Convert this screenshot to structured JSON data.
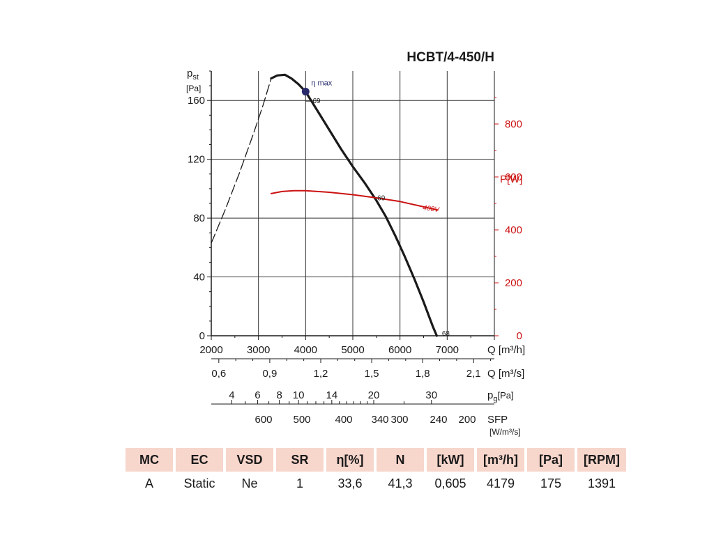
{
  "chart_data": {
    "type": "line",
    "title": "HCBT/4-450/H",
    "ylabel_main": "p",
    "ylabel_sub": "st",
    "ylabel_unit": "[Pa]",
    "xlabel": "Q [m³/h]",
    "xlim": [
      2000,
      8000
    ],
    "ylim": [
      0,
      180
    ],
    "xticks": [
      2000,
      3000,
      4000,
      5000,
      6000,
      7000
    ],
    "xtick_labels": [
      "2000",
      "3000",
      "4000",
      "5000",
      "6000",
      "7000"
    ],
    "yticks": [
      0,
      40,
      80,
      120,
      160
    ],
    "ytick_labels": [
      "0",
      "40",
      "80",
      "120",
      "160"
    ],
    "y2label": "P[W]",
    "y2lim": [
      0,
      1000
    ],
    "y2ticks": [
      0,
      200,
      400,
      600,
      800
    ],
    "y2tick_labels": [
      "0",
      "200",
      "400",
      "600",
      "800"
    ],
    "grid": true,
    "series": [
      {
        "name": "",
        "axis": "left",
        "style": "solid",
        "color": "#1a1a1a",
        "x": [
          3270,
          3400,
          3560,
          3700,
          3850,
          4000,
          4250,
          4500,
          4750,
          5000,
          5250,
          5500,
          5700,
          5900,
          6100,
          6300,
          6500,
          6700,
          6780
        ],
        "y": [
          175,
          177,
          177.5,
          175,
          171,
          166,
          153,
          140,
          127,
          115,
          104,
          92,
          81,
          68,
          54,
          39,
          23,
          6,
          0
        ]
      },
      {
        "name": "",
        "axis": "left",
        "style": "dashed",
        "color": "#1a1a1a",
        "x": [
          2000,
          2300,
          2600,
          2900,
          3100,
          3270
        ],
        "y": [
          63,
          86,
          111,
          138,
          157,
          175
        ]
      },
      {
        "name": "400V",
        "axis": "right",
        "style": "solid",
        "color": "#cc1111",
        "x": [
          3270,
          3500,
          3750,
          4000,
          4500,
          5000,
          5500,
          6000,
          6500,
          6800
        ],
        "y": [
          537,
          545,
          548,
          548,
          542,
          533,
          521,
          507,
          487,
          475
        ]
      }
    ],
    "annotations": [
      {
        "label": "η max",
        "x": 4000,
        "y": 166,
        "marker": true,
        "color": "#27296b"
      },
      {
        "label": "69",
        "x": 4150,
        "y": 160,
        "leader": true
      },
      {
        "label": "69",
        "x": 5520,
        "y": 94
      },
      {
        "label": "68",
        "x": 6890,
        "y": 2
      }
    ],
    "secondary_axes": [
      {
        "label": "Q [m³/s]",
        "ticks": [
          0.6,
          0.9,
          1.2,
          1.5,
          1.8,
          2.1
        ],
        "tick_labels": [
          "0,6",
          "0,9",
          "1,2",
          "1,5",
          "1,8",
          "2,1"
        ],
        "minor_step": 0.1
      },
      {
        "label_main": "p",
        "label_sub": "g",
        "label_unit": "[Pa]",
        "ticks": [
          4,
          6,
          8,
          10,
          14,
          20,
          30
        ],
        "tick_labels": [
          "4",
          "6",
          "8",
          "10",
          "14",
          "20",
          "30"
        ],
        "ticks_no_label": [
          5,
          7,
          9,
          11,
          12,
          13,
          15,
          16,
          17,
          18,
          19,
          25
        ]
      },
      {
        "label_main": "SFP",
        "label_unit": "[W/m³/s]",
        "ticks": [
          600,
          500,
          400,
          340,
          300,
          240,
          200
        ],
        "tick_labels": [
          "600",
          "500",
          "400",
          "340",
          "300",
          "240",
          "200"
        ]
      }
    ]
  },
  "table": {
    "headers": [
      "MC",
      "EC",
      "VSD",
      "SR",
      "η[%]",
      "N",
      "[kW]",
      "[m³/h]",
      "[Pa]",
      "[RPM]"
    ],
    "values": [
      "A",
      "Static",
      "Ne",
      "1",
      "33,6",
      "41,3",
      "0,605",
      "4179",
      "175",
      "1391"
    ]
  },
  "colors": {
    "curve": "#1a1a1a",
    "power": "#cc1111",
    "marker": "#27296b",
    "header_bg": "#f7d6cc"
  }
}
